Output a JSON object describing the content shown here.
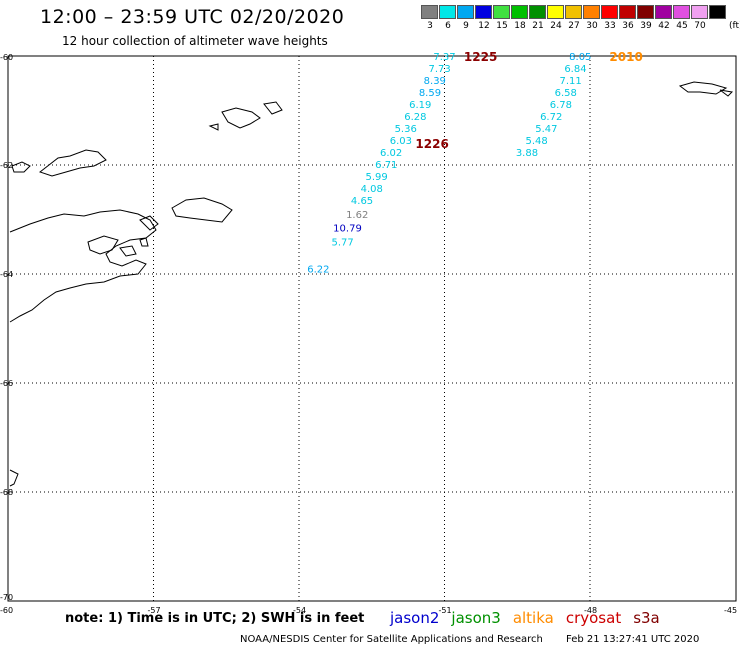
{
  "header": {
    "title": "12:00 – 23:59 UTC 02/20/2020",
    "subtitle": "12 hour collection of altimeter wave heights"
  },
  "scale": {
    "unit": "(ft)",
    "items": [
      {
        "label": "3",
        "color": "#808080"
      },
      {
        "label": "6",
        "color": "#00e8e8"
      },
      {
        "label": "9",
        "color": "#00a8f0"
      },
      {
        "label": "12",
        "color": "#0000e0"
      },
      {
        "label": "15",
        "color": "#40e040"
      },
      {
        "label": "18",
        "color": "#00c000"
      },
      {
        "label": "21",
        "color": "#009000"
      },
      {
        "label": "24",
        "color": "#ffff00"
      },
      {
        "label": "27",
        "color": "#f0c000"
      },
      {
        "label": "30",
        "color": "#ff8000"
      },
      {
        "label": "33",
        "color": "#ff0000"
      },
      {
        "label": "36",
        "color": "#c00000"
      },
      {
        "label": "39",
        "color": "#800000"
      },
      {
        "label": "42",
        "color": "#a000a0"
      },
      {
        "label": "45",
        "color": "#e050e0"
      },
      {
        "label": "70",
        "color": "#f0a0f0"
      },
      {
        "label": "",
        "color": "#000000"
      }
    ]
  },
  "map": {
    "lat_labels": [
      "-60",
      "-62",
      "-64",
      "-66",
      "-68",
      "-70"
    ],
    "lon_labels": [
      "-57",
      "-54",
      "-51",
      "-48",
      "-45"
    ],
    "corner_label": "-60",
    "passes": [
      {
        "label": "1225",
        "color": "#8b0000",
        "lat": -60.0,
        "lon": -50.6
      },
      {
        "label": "1226",
        "color": "#8b0000",
        "lat": -61.6,
        "lon": -51.6
      },
      {
        "label": "2010",
        "color": "#ff8c00",
        "lat": -60.0,
        "lon": -47.6
      }
    ],
    "points": [
      {
        "v": "7.37",
        "lat": -60.0,
        "lon": -51.0,
        "color": "#00c8e0"
      },
      {
        "v": "7.73",
        "lat": -60.22,
        "lon": -51.1,
        "color": "#00c8e0"
      },
      {
        "v": "8.39",
        "lat": -60.44,
        "lon": -51.2,
        "color": "#00a8f0"
      },
      {
        "v": "8.59",
        "lat": -60.66,
        "lon": -51.3,
        "color": "#00a8f0"
      },
      {
        "v": "6.19",
        "lat": -60.88,
        "lon": -51.5,
        "color": "#00c8e0"
      },
      {
        "v": "6.28",
        "lat": -61.1,
        "lon": -51.6,
        "color": "#00c8e0"
      },
      {
        "v": "5.36",
        "lat": -61.32,
        "lon": -51.8,
        "color": "#00c8e0"
      },
      {
        "v": "6.03",
        "lat": -61.54,
        "lon": -51.9,
        "color": "#00c8e0"
      },
      {
        "v": "6.02",
        "lat": -61.76,
        "lon": -52.1,
        "color": "#00c8e0"
      },
      {
        "v": "6.71",
        "lat": -61.98,
        "lon": -52.2,
        "color": "#00c8e0"
      },
      {
        "v": "5.99",
        "lat": -62.2,
        "lon": -52.4,
        "color": "#00c8e0"
      },
      {
        "v": "4.08",
        "lat": -62.42,
        "lon": -52.5,
        "color": "#00c8e0"
      },
      {
        "v": "4.65",
        "lat": -62.64,
        "lon": -52.7,
        "color": "#00c8e0"
      },
      {
        "v": "1.62",
        "lat": -62.9,
        "lon": -52.8,
        "color": "#808080"
      },
      {
        "v": "10.79",
        "lat": -63.15,
        "lon": -53.0,
        "color": "#0000c0"
      },
      {
        "v": "5.77",
        "lat": -63.4,
        "lon": -53.1,
        "color": "#00c8e0"
      },
      {
        "v": "6.22",
        "lat": -63.9,
        "lon": -53.6,
        "color": "#00a8f0"
      },
      {
        "v": "8.05",
        "lat": -60.0,
        "lon": -48.2,
        "color": "#00a8f0"
      },
      {
        "v": "6.84",
        "lat": -60.22,
        "lon": -48.3,
        "color": "#00c8e0"
      },
      {
        "v": "7.11",
        "lat": -60.44,
        "lon": -48.4,
        "color": "#00c8e0"
      },
      {
        "v": "6.58",
        "lat": -60.66,
        "lon": -48.5,
        "color": "#00c8e0"
      },
      {
        "v": "6.78",
        "lat": -60.88,
        "lon": -48.6,
        "color": "#00c8e0"
      },
      {
        "v": "6.72",
        "lat": -61.1,
        "lon": -48.8,
        "color": "#00c8e0"
      },
      {
        "v": "5.47",
        "lat": -61.32,
        "lon": -48.9,
        "color": "#00c8e0"
      },
      {
        "v": "5.48",
        "lat": -61.54,
        "lon": -49.1,
        "color": "#00c8e0"
      },
      {
        "v": "3.88",
        "lat": -61.76,
        "lon": -49.3,
        "color": "#00c8e0"
      }
    ]
  },
  "note": "note: 1) Time is in UTC; 2) SWH is in feet",
  "missions": [
    {
      "name": "jason2",
      "color": "#0000cc"
    },
    {
      "name": "jason3",
      "color": "#009000"
    },
    {
      "name": "altika",
      "color": "#ff8c00"
    },
    {
      "name": "cryosat",
      "color": "#cc0000"
    },
    {
      "name": "s3a",
      "color": "#800000"
    }
  ],
  "footer": {
    "credit": "NOAA/NESDIS Center for Satellite Applications and Research",
    "timestamp": "Feb 21 13:27:41 UTC 2020"
  }
}
